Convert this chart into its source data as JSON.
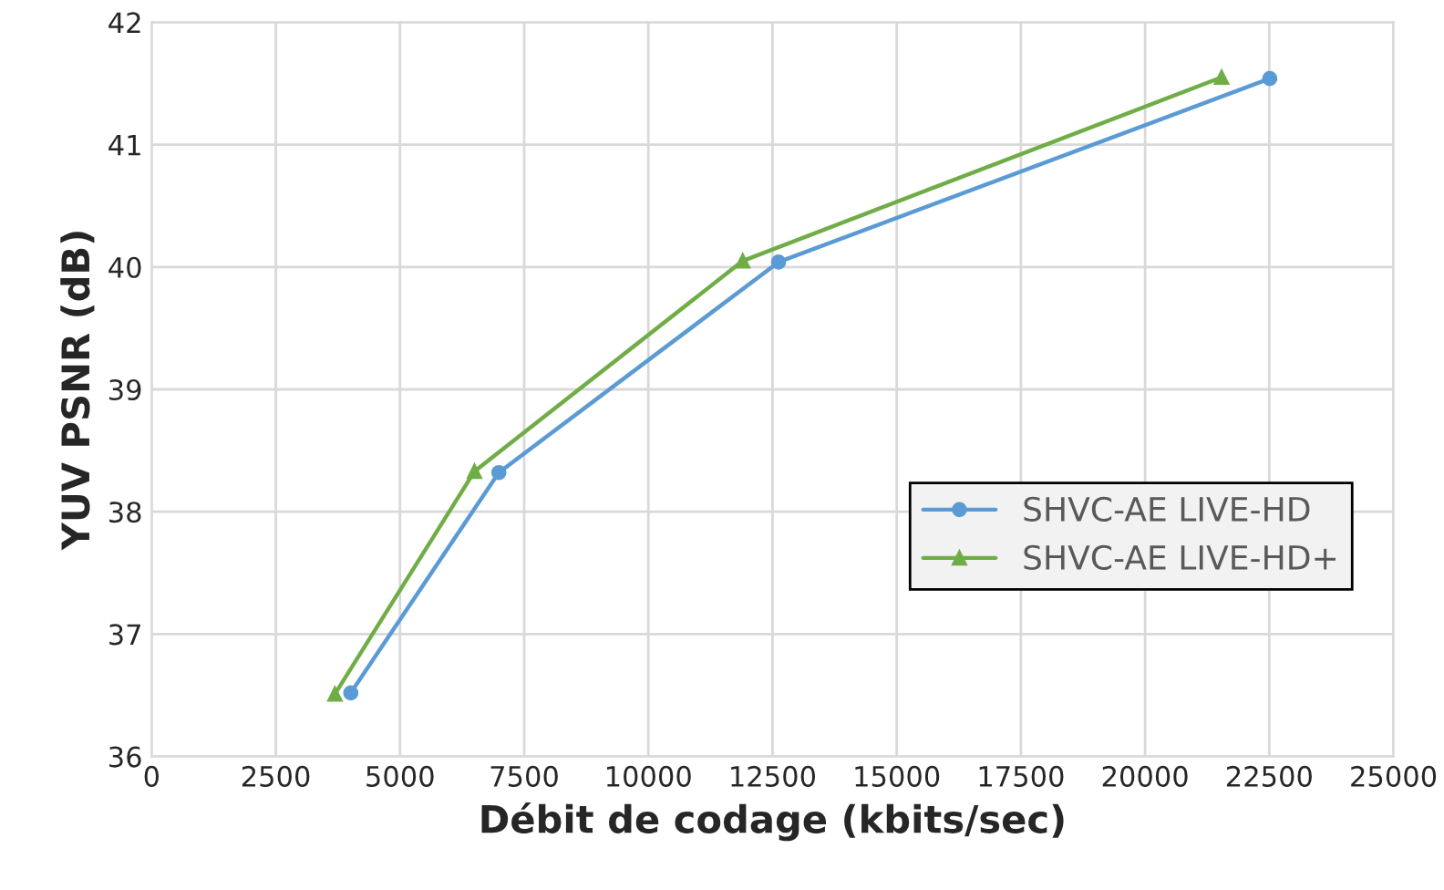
{
  "chart_data": {
    "type": "line",
    "xlabel": "Débit de codage (kbits/sec)",
    "ylabel": "YUV PSNR (dB)",
    "series": [
      {
        "name": "SHVC-AE LIVE-HD",
        "color": "#5b9bd5",
        "marker": "circle",
        "x": [
          4010,
          6990,
          12620,
          22510
        ],
        "values": [
          36.52,
          38.32,
          40.04,
          41.54
        ]
      },
      {
        "name": "SHVC-AE LIVE-HD+",
        "color": "#70ad47",
        "marker": "triangle",
        "x": [
          3690,
          6500,
          11900,
          21540
        ],
        "values": [
          36.51,
          38.33,
          40.05,
          41.55
        ]
      }
    ],
    "xlim": [
      0,
      25000
    ],
    "xticks": [
      0,
      2500,
      5000,
      7500,
      10000,
      12500,
      15000,
      17500,
      20000,
      22500,
      25000
    ],
    "ylim": [
      36,
      42
    ],
    "yticks": [
      36,
      37,
      38,
      39,
      40,
      41,
      42
    ],
    "grid": true,
    "legend": "center right",
    "line_style": "solid"
  }
}
